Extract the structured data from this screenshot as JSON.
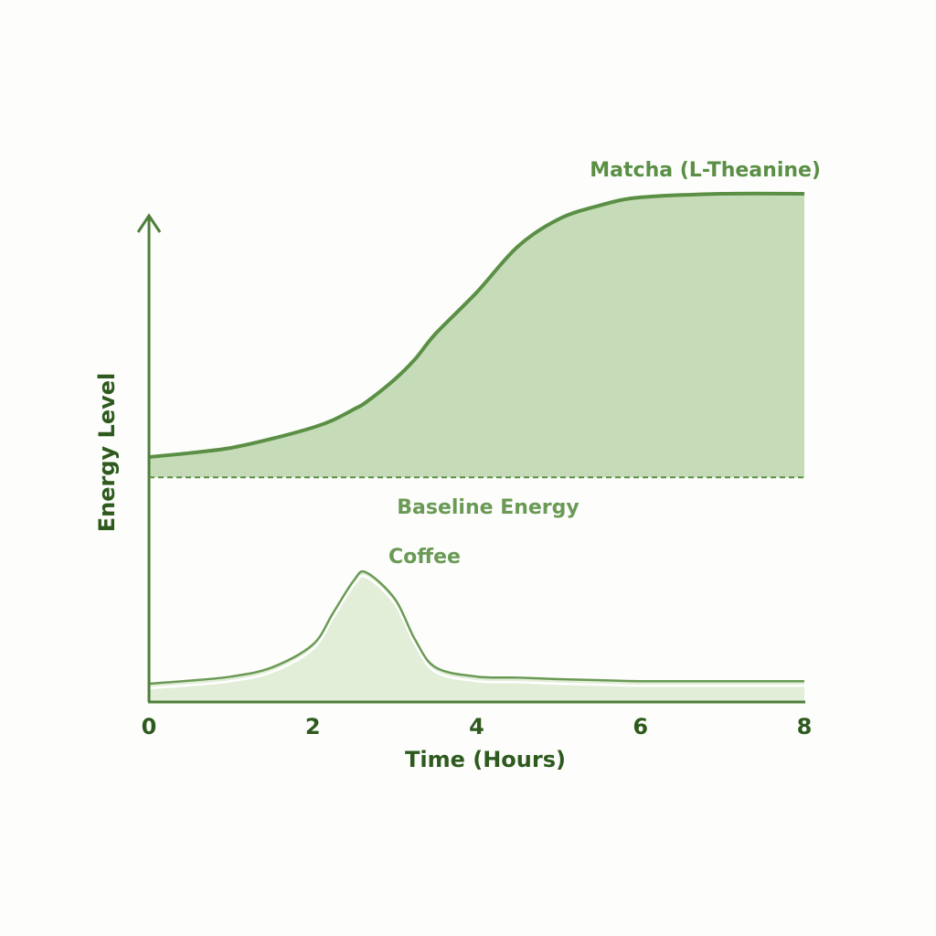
{
  "chart_data": {
    "type": "line",
    "x_label": "Time (Hours)",
    "y_label": "Energy Level",
    "x": [
      0,
      0.5,
      1,
      1.5,
      2,
      2.25,
      2.5,
      2.65,
      3,
      3.25,
      3.5,
      4,
      4.5,
      5,
      5.5,
      6,
      7,
      8
    ],
    "series": [
      {
        "name": "Matcha (L-Theanine)",
        "color": "#5a8f45",
        "fill": "#c6dcb8",
        "values": [
          48.2,
          49,
          50,
          51.8,
          54,
          55.5,
          57.6,
          59,
          63.5,
          67.5,
          72.5,
          80.6,
          89.6,
          95,
          97.7,
          99.3,
          100,
          100
        ]
      },
      {
        "name": "Coffee",
        "color": "#6a9a55",
        "fill": "#e3eed9",
        "values": [
          3.6,
          4.2,
          5,
          6.8,
          11.3,
          17.6,
          23.9,
          25.5,
          20.3,
          12.2,
          6.8,
          5,
          4.8,
          4.5,
          4.3,
          4.1,
          4.1,
          4.1
        ]
      }
    ],
    "baseline": {
      "label": "Baseline Energy",
      "value": 44.2
    },
    "xlim": [
      0,
      8
    ],
    "xticks": [
      0,
      2,
      4,
      6,
      8
    ],
    "ylim": [
      0,
      100
    ]
  }
}
